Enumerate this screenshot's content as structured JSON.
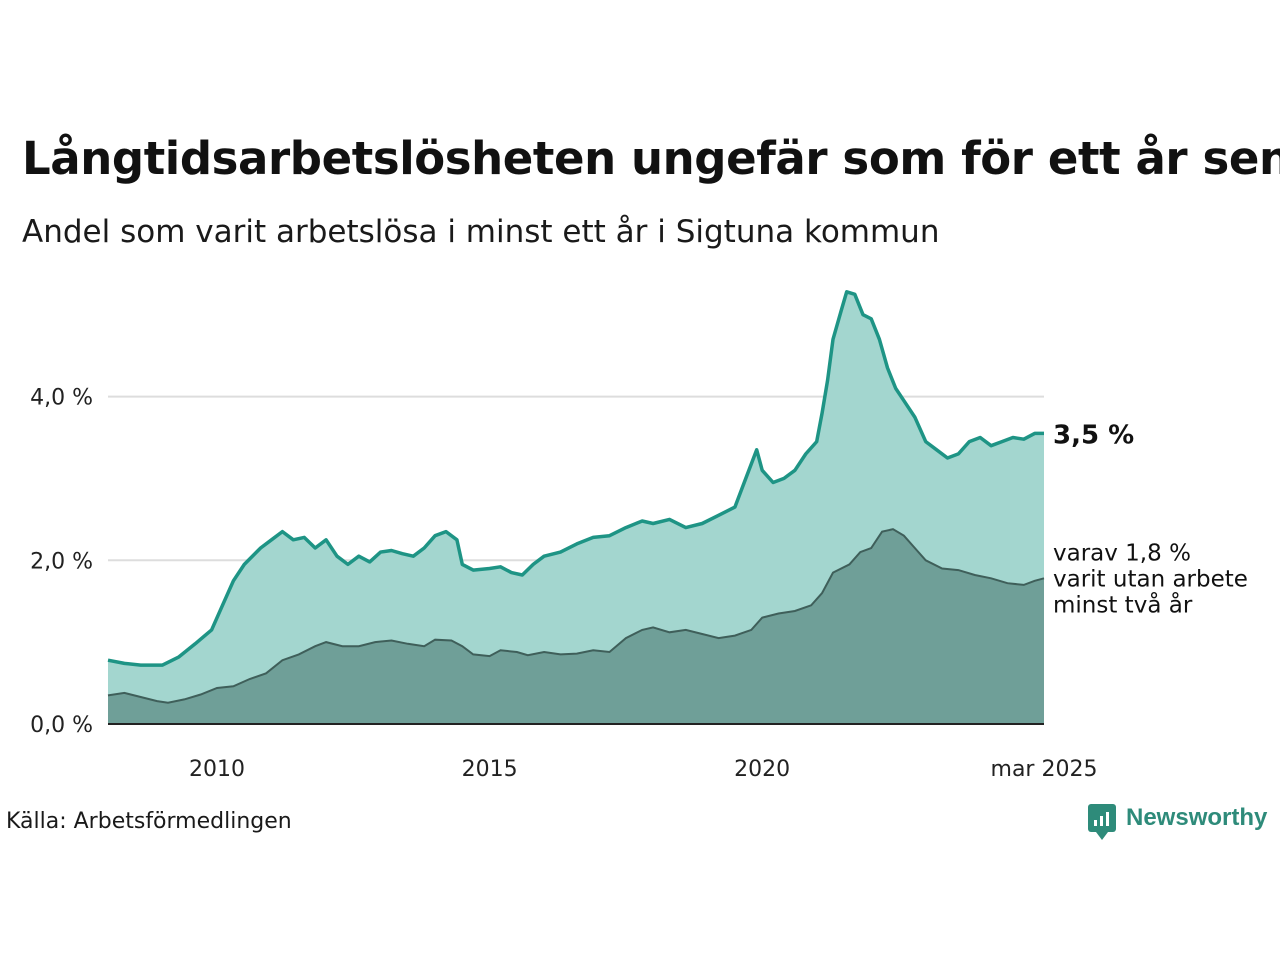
{
  "header": {
    "title": "Långtidsarbetslösheten ungefär som för ett år sen",
    "subtitle": "Andel som varit arbetslösa i minst ett år i Sigtuna kommun"
  },
  "footer": {
    "source": "Källa: Arbetsförmedlingen",
    "logo_text": "Newsworthy"
  },
  "colors": {
    "line_main": "#1e9485",
    "fill_main": "#a3d6cf",
    "fill_sub": "#6f9f98",
    "line_sub": "#3f5f5a",
    "grid": "#dddddd"
  },
  "chart_data": {
    "type": "area",
    "title": "Långtidsarbetslösheten ungefär som för ett år sen",
    "subtitle": "Andel som varit arbetslösa i minst ett år i Sigtuna kommun",
    "xlabel": "",
    "ylabel": "",
    "x_range": [
      2008.0,
      2025.17
    ],
    "ylim": [
      0,
      5.4
    ],
    "y_ticks": [
      0,
      2,
      4
    ],
    "y_tick_labels": [
      "0,0 %",
      "2,0 %",
      "4,0 %"
    ],
    "x_ticks": [
      2010,
      2015,
      2020,
      2025.17
    ],
    "x_tick_labels": [
      "2010",
      "2015",
      "2020",
      "mar 2025"
    ],
    "grid": true,
    "series": [
      {
        "key": "main",
        "end_label": "3,5 %",
        "points": [
          [
            2008.0,
            0.78
          ],
          [
            2008.3,
            0.74
          ],
          [
            2008.6,
            0.72
          ],
          [
            2009.0,
            0.72
          ],
          [
            2009.3,
            0.82
          ],
          [
            2009.6,
            0.98
          ],
          [
            2009.9,
            1.15
          ],
          [
            2010.1,
            1.45
          ],
          [
            2010.3,
            1.75
          ],
          [
            2010.5,
            1.95
          ],
          [
            2010.8,
            2.15
          ],
          [
            2011.0,
            2.25
          ],
          [
            2011.2,
            2.35
          ],
          [
            2011.4,
            2.25
          ],
          [
            2011.6,
            2.28
          ],
          [
            2011.8,
            2.15
          ],
          [
            2012.0,
            2.25
          ],
          [
            2012.2,
            2.05
          ],
          [
            2012.4,
            1.95
          ],
          [
            2012.6,
            2.05
          ],
          [
            2012.8,
            1.98
          ],
          [
            2013.0,
            2.1
          ],
          [
            2013.2,
            2.12
          ],
          [
            2013.4,
            2.08
          ],
          [
            2013.6,
            2.05
          ],
          [
            2013.8,
            2.15
          ],
          [
            2014.0,
            2.3
          ],
          [
            2014.2,
            2.35
          ],
          [
            2014.4,
            2.25
          ],
          [
            2014.5,
            1.95
          ],
          [
            2014.7,
            1.88
          ],
          [
            2015.0,
            1.9
          ],
          [
            2015.2,
            1.92
          ],
          [
            2015.4,
            1.85
          ],
          [
            2015.6,
            1.82
          ],
          [
            2015.8,
            1.95
          ],
          [
            2016.0,
            2.05
          ],
          [
            2016.3,
            2.1
          ],
          [
            2016.6,
            2.2
          ],
          [
            2016.9,
            2.28
          ],
          [
            2017.2,
            2.3
          ],
          [
            2017.5,
            2.4
          ],
          [
            2017.8,
            2.48
          ],
          [
            2018.0,
            2.45
          ],
          [
            2018.3,
            2.5
          ],
          [
            2018.6,
            2.4
          ],
          [
            2018.9,
            2.45
          ],
          [
            2019.2,
            2.55
          ],
          [
            2019.5,
            2.65
          ],
          [
            2019.7,
            3.0
          ],
          [
            2019.9,
            3.35
          ],
          [
            2020.0,
            3.1
          ],
          [
            2020.2,
            2.95
          ],
          [
            2020.4,
            3.0
          ],
          [
            2020.6,
            3.1
          ],
          [
            2020.8,
            3.3
          ],
          [
            2021.0,
            3.45
          ],
          [
            2021.1,
            3.8
          ],
          [
            2021.2,
            4.2
          ],
          [
            2021.3,
            4.7
          ],
          [
            2021.45,
            5.05
          ],
          [
            2021.55,
            5.28
          ],
          [
            2021.7,
            5.25
          ],
          [
            2021.85,
            5.0
          ],
          [
            2022.0,
            4.95
          ],
          [
            2022.15,
            4.7
          ],
          [
            2022.3,
            4.35
          ],
          [
            2022.45,
            4.1
          ],
          [
            2022.6,
            3.95
          ],
          [
            2022.8,
            3.75
          ],
          [
            2023.0,
            3.45
          ],
          [
            2023.2,
            3.35
          ],
          [
            2023.4,
            3.25
          ],
          [
            2023.6,
            3.3
          ],
          [
            2023.8,
            3.45
          ],
          [
            2024.0,
            3.5
          ],
          [
            2024.2,
            3.4
          ],
          [
            2024.4,
            3.45
          ],
          [
            2024.6,
            3.5
          ],
          [
            2024.8,
            3.48
          ],
          [
            2025.0,
            3.55
          ],
          [
            2025.17,
            3.55
          ]
        ]
      },
      {
        "key": "sub",
        "end_label_lines": [
          "varav 1,8 %",
          "varit utan arbete",
          "minst två år"
        ],
        "points": [
          [
            2008.0,
            0.35
          ],
          [
            2008.3,
            0.38
          ],
          [
            2008.6,
            0.33
          ],
          [
            2008.9,
            0.28
          ],
          [
            2009.1,
            0.26
          ],
          [
            2009.4,
            0.3
          ],
          [
            2009.7,
            0.36
          ],
          [
            2010.0,
            0.44
          ],
          [
            2010.3,
            0.46
          ],
          [
            2010.6,
            0.55
          ],
          [
            2010.9,
            0.62
          ],
          [
            2011.2,
            0.78
          ],
          [
            2011.5,
            0.85
          ],
          [
            2011.8,
            0.95
          ],
          [
            2012.0,
            1.0
          ],
          [
            2012.3,
            0.95
          ],
          [
            2012.6,
            0.95
          ],
          [
            2012.9,
            1.0
          ],
          [
            2013.2,
            1.02
          ],
          [
            2013.5,
            0.98
          ],
          [
            2013.8,
            0.95
          ],
          [
            2014.0,
            1.03
          ],
          [
            2014.3,
            1.02
          ],
          [
            2014.5,
            0.95
          ],
          [
            2014.7,
            0.85
          ],
          [
            2015.0,
            0.83
          ],
          [
            2015.2,
            0.9
          ],
          [
            2015.5,
            0.88
          ],
          [
            2015.7,
            0.84
          ],
          [
            2016.0,
            0.88
          ],
          [
            2016.3,
            0.85
          ],
          [
            2016.6,
            0.86
          ],
          [
            2016.9,
            0.9
          ],
          [
            2017.2,
            0.88
          ],
          [
            2017.5,
            1.05
          ],
          [
            2017.8,
            1.15
          ],
          [
            2018.0,
            1.18
          ],
          [
            2018.3,
            1.12
          ],
          [
            2018.6,
            1.15
          ],
          [
            2018.9,
            1.1
          ],
          [
            2019.2,
            1.05
          ],
          [
            2019.5,
            1.08
          ],
          [
            2019.8,
            1.15
          ],
          [
            2020.0,
            1.3
          ],
          [
            2020.3,
            1.35
          ],
          [
            2020.6,
            1.38
          ],
          [
            2020.9,
            1.45
          ],
          [
            2021.1,
            1.6
          ],
          [
            2021.3,
            1.85
          ],
          [
            2021.6,
            1.95
          ],
          [
            2021.8,
            2.1
          ],
          [
            2022.0,
            2.15
          ],
          [
            2022.2,
            2.35
          ],
          [
            2022.4,
            2.38
          ],
          [
            2022.6,
            2.3
          ],
          [
            2022.8,
            2.15
          ],
          [
            2023.0,
            2.0
          ],
          [
            2023.3,
            1.9
          ],
          [
            2023.6,
            1.88
          ],
          [
            2023.9,
            1.82
          ],
          [
            2024.2,
            1.78
          ],
          [
            2024.5,
            1.72
          ],
          [
            2024.8,
            1.7
          ],
          [
            2025.0,
            1.75
          ],
          [
            2025.17,
            1.78
          ]
        ]
      }
    ]
  }
}
